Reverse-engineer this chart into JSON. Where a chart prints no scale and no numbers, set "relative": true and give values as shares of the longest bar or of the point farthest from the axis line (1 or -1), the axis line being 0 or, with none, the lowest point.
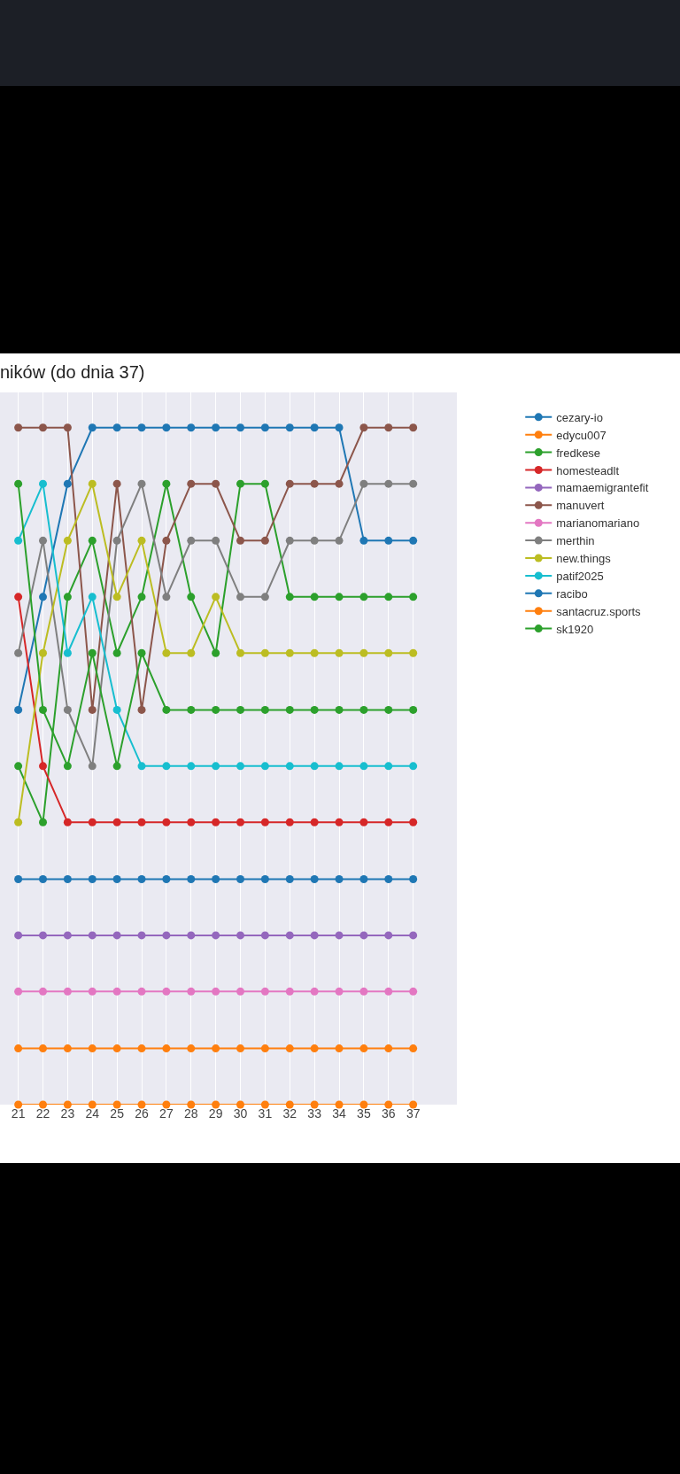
{
  "chart_data": {
    "type": "line",
    "title": "ników (do dnia 37)",
    "relative": true,
    "marker": "circle",
    "line_style": "solid",
    "grid": "x",
    "legend": "top right",
    "x": [
      21,
      22,
      23,
      24,
      25,
      26,
      27,
      28,
      29,
      30,
      31,
      32,
      33,
      34,
      35,
      36,
      37
    ],
    "xlim": [
      20.26,
      38.77
    ],
    "xticks": [
      21,
      22,
      23,
      24,
      25,
      26,
      27,
      28,
      29,
      30,
      31,
      32,
      33,
      34,
      35,
      36,
      37
    ],
    "series": [
      {
        "name": "cezary-io",
        "color": "#1f77b4",
        "values": [
          0.583,
          0.75,
          0.917,
          1,
          1,
          1,
          1,
          1,
          1,
          1,
          1,
          1,
          1,
          1,
          0.833,
          0.833,
          0.833
        ]
      },
      {
        "name": "edycu007",
        "color": "#ff7f0e",
        "values": [
          0.083,
          0.083,
          0.083,
          0.083,
          0.083,
          0.083,
          0.083,
          0.083,
          0.083,
          0.083,
          0.083,
          0.083,
          0.083,
          0.083,
          0.083,
          0.083,
          0.083
        ]
      },
      {
        "name": "fredkese",
        "color": "#2ca02c",
        "values": [
          0.5,
          0.417,
          0.75,
          0.833,
          0.667,
          0.75,
          0.917,
          0.75,
          0.667,
          0.917,
          0.917,
          0.75,
          0.75,
          0.75,
          0.75,
          0.75,
          0.75
        ]
      },
      {
        "name": "homesteadlt",
        "color": "#d62728",
        "values": [
          0.75,
          0.5,
          0.417,
          0.417,
          0.417,
          0.417,
          0.417,
          0.417,
          0.417,
          0.417,
          0.417,
          0.417,
          0.417,
          0.417,
          0.417,
          0.417,
          0.417
        ]
      },
      {
        "name": "mamaemigrantefit",
        "color": "#9467bd",
        "values": [
          0.25,
          0.25,
          0.25,
          0.25,
          0.25,
          0.25,
          0.25,
          0.25,
          0.25,
          0.25,
          0.25,
          0.25,
          0.25,
          0.25,
          0.25,
          0.25,
          0.25
        ]
      },
      {
        "name": "manuvert",
        "color": "#8c564b",
        "values": [
          1,
          1,
          1,
          0.583,
          0.917,
          0.583,
          0.833,
          0.917,
          0.917,
          0.833,
          0.833,
          0.917,
          0.917,
          0.917,
          1,
          1,
          1
        ]
      },
      {
        "name": "marianomariano",
        "color": "#e377c2",
        "values": [
          0.167,
          0.167,
          0.167,
          0.167,
          0.167,
          0.167,
          0.167,
          0.167,
          0.167,
          0.167,
          0.167,
          0.167,
          0.167,
          0.167,
          0.167,
          0.167,
          0.167
        ]
      },
      {
        "name": "merthin",
        "color": "#7f7f7f",
        "values": [
          0.667,
          0.833,
          0.583,
          0.5,
          0.833,
          0.917,
          0.75,
          0.833,
          0.833,
          0.75,
          0.75,
          0.833,
          0.833,
          0.833,
          0.917,
          0.917,
          0.917
        ]
      },
      {
        "name": "new.things",
        "color": "#bcbd22",
        "values": [
          0.417,
          0.667,
          0.833,
          0.917,
          0.75,
          0.833,
          0.667,
          0.667,
          0.75,
          0.667,
          0.667,
          0.667,
          0.667,
          0.667,
          0.667,
          0.667,
          0.667
        ]
      },
      {
        "name": "patif2025",
        "color": "#17becf",
        "values": [
          0.833,
          0.917,
          0.667,
          0.75,
          0.583,
          0.5,
          0.5,
          0.5,
          0.5,
          0.5,
          0.5,
          0.5,
          0.5,
          0.5,
          0.5,
          0.5,
          0.5
        ]
      },
      {
        "name": "racibo",
        "color": "#1f77b4",
        "values": [
          0.333,
          0.333,
          0.333,
          0.333,
          0.333,
          0.333,
          0.333,
          0.333,
          0.333,
          0.333,
          0.333,
          0.333,
          0.333,
          0.333,
          0.333,
          0.333,
          0.333
        ]
      },
      {
        "name": "santacruz.sports",
        "color": "#ff7f0e",
        "values": [
          0,
          0,
          0,
          0,
          0,
          0,
          0,
          0,
          0,
          0,
          0,
          0,
          0,
          0,
          0,
          0,
          0
        ]
      },
      {
        "name": "sk1920",
        "color": "#2ca02c",
        "values": [
          0.917,
          0.583,
          0.5,
          0.667,
          0.5,
          0.667,
          0.583,
          0.583,
          0.583,
          0.583,
          0.583,
          0.583,
          0.583,
          0.583,
          0.583,
          0.583,
          0.583
        ]
      }
    ]
  }
}
